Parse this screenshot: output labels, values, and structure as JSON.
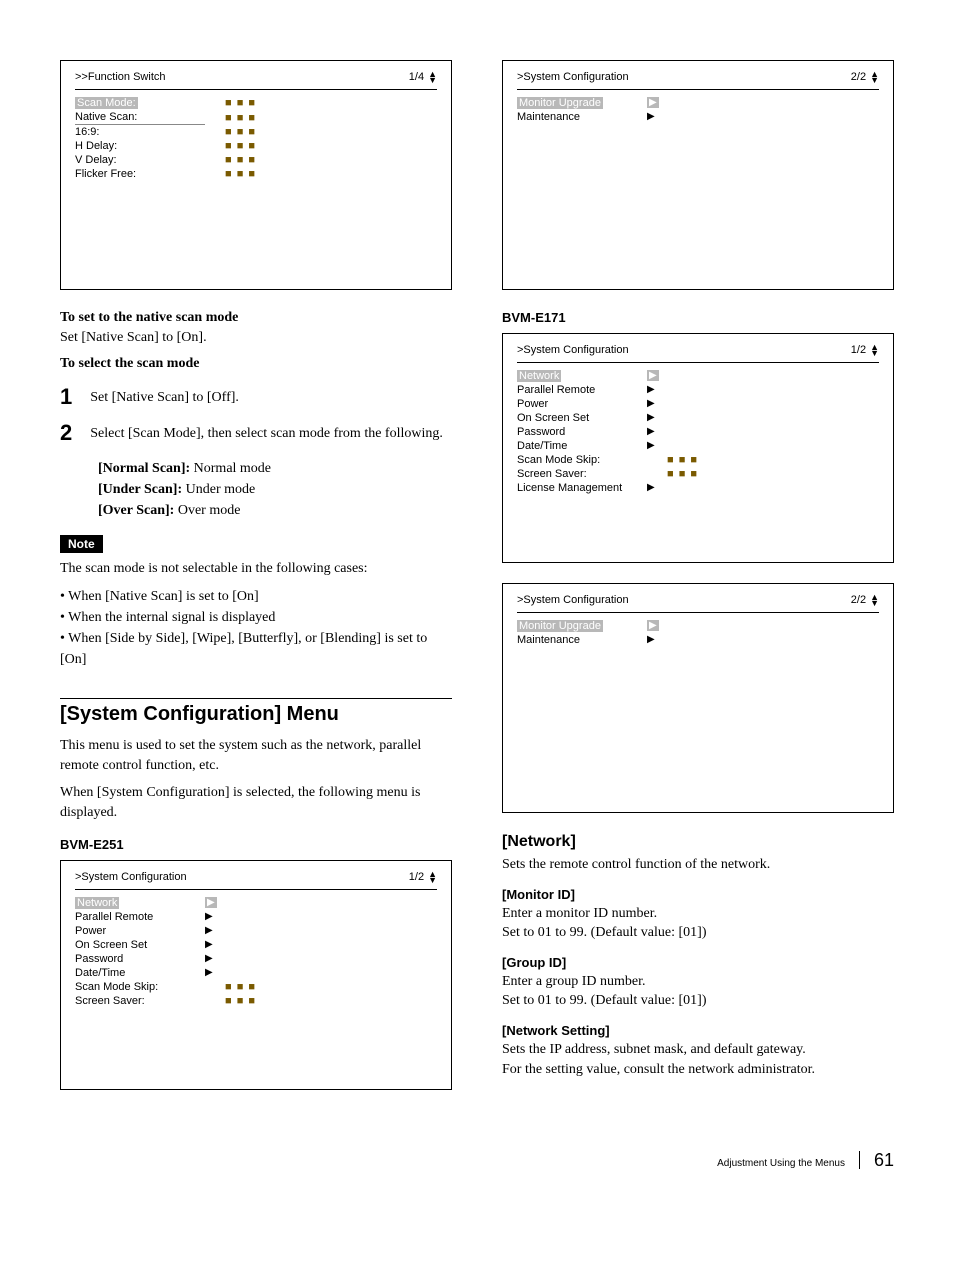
{
  "left": {
    "menu1": {
      "title": ">>Function Switch",
      "page": "1/4",
      "rows": [
        {
          "label": "Scan Mode:",
          "val": "■ ■ ■",
          "highlight": true,
          "underline": false
        },
        {
          "label": "Native Scan:",
          "val": "■ ■ ■",
          "highlight": false,
          "underline": true
        },
        {
          "label": "16:9:",
          "val": "■ ■ ■",
          "highlight": false,
          "underline": false
        },
        {
          "label": "H Delay:",
          "val": "■ ■ ■",
          "highlight": false,
          "underline": false
        },
        {
          "label": "V Delay:",
          "val": "■ ■ ■",
          "highlight": false,
          "underline": false
        },
        {
          "label": "Flicker Free:",
          "val": "■ ■ ■",
          "highlight": false,
          "underline": false
        }
      ]
    },
    "h1": "To set to the native scan mode",
    "p1": "Set [Native Scan] to [On].",
    "h2": "To select the scan mode",
    "step1": {
      "num": "1",
      "text": "Set [Native Scan] to [Off]."
    },
    "step2": {
      "num": "2",
      "text": "Select [Scan Mode], then select scan mode from the following."
    },
    "modes": {
      "normal_label": "[Normal Scan]:",
      "normal_val": " Normal mode",
      "under_label": "[Under Scan]:",
      "under_val": " Under mode",
      "over_label": "[Over Scan]:",
      "over_val": " Over mode"
    },
    "note_label": "Note",
    "note_intro": "The scan mode is not selectable in the following cases:",
    "note_bullets": [
      "When [Native Scan] is set to [On]",
      "When the internal signal is displayed",
      "When [Side by Side], [Wipe], [Butterfly], or [Blending] is set to [On]"
    ],
    "section_heading": "[System Configuration] Menu",
    "section_text1": "This menu is used to set the system such as the network, parallel remote control function, etc.",
    "section_text2": "When [System Configuration] is selected, the following menu is displayed.",
    "model1": "BVM-E251",
    "menu2": {
      "title": ">System Configuration",
      "page": "1/2",
      "rows": [
        {
          "label": "Network",
          "arrow": "▶",
          "highlight": true
        },
        {
          "label": "Parallel Remote",
          "arrow": "▶",
          "highlight": false
        },
        {
          "label": "Power",
          "arrow": "▶",
          "highlight": false
        },
        {
          "label": "On Screen Set",
          "arrow": "▶",
          "highlight": false
        },
        {
          "label": "Password",
          "arrow": "▶",
          "highlight": false
        },
        {
          "label": "Date/Time",
          "arrow": "▶",
          "highlight": false
        },
        {
          "label": "Scan Mode Skip:",
          "val": "■ ■ ■",
          "highlight": false
        },
        {
          "label": "Screen Saver:",
          "val": "■ ■ ■",
          "highlight": false
        }
      ]
    }
  },
  "right": {
    "menu1": {
      "title": ">System Configuration",
      "page": "2/2",
      "rows": [
        {
          "label": "Monitor Upgrade",
          "arrow": "▶",
          "highlight": true
        },
        {
          "label": "Maintenance",
          "arrow": "▶",
          "highlight": false
        }
      ]
    },
    "model2": "BVM-E171",
    "menu2": {
      "title": ">System Configuration",
      "page": "1/2",
      "rows": [
        {
          "label": "Network",
          "arrow": "▶",
          "highlight": true
        },
        {
          "label": "Parallel Remote",
          "arrow": "▶",
          "highlight": false
        },
        {
          "label": "Power",
          "arrow": "▶",
          "highlight": false
        },
        {
          "label": "On Screen Set",
          "arrow": "▶",
          "highlight": false
        },
        {
          "label": "Password",
          "arrow": "▶",
          "highlight": false
        },
        {
          "label": "Date/Time",
          "arrow": "▶",
          "highlight": false
        },
        {
          "label": "Scan Mode Skip:",
          "val": "■ ■ ■",
          "highlight": false
        },
        {
          "label": "Screen Saver:",
          "val": "■ ■ ■",
          "highlight": false
        },
        {
          "label": "License Management",
          "arrow": "▶",
          "highlight": false
        }
      ]
    },
    "menu3": {
      "title": ">System Configuration",
      "page": "2/2",
      "rows": [
        {
          "label": "Monitor Upgrade",
          "arrow": "▶",
          "highlight": true
        },
        {
          "label": "Maintenance",
          "arrow": "▶",
          "highlight": false
        }
      ]
    },
    "network_heading": "[Network]",
    "network_text": "Sets the remote control function of the network.",
    "monitor_heading": "[Monitor ID]",
    "monitor_t1": "Enter a monitor ID number.",
    "monitor_t2": "Set to 01 to 99. (Default value: [01])",
    "group_heading": "[Group ID]",
    "group_t1": "Enter a group ID number.",
    "group_t2": "Set to 01 to 99. (Default value: [01])",
    "netset_heading": "[Network Setting]",
    "netset_t1": "Sets the IP address, subnet mask, and default gateway.",
    "netset_t2": "For the setting value, consult the network administrator."
  },
  "footer": {
    "text": "Adjustment Using the Menus",
    "page": "61"
  }
}
